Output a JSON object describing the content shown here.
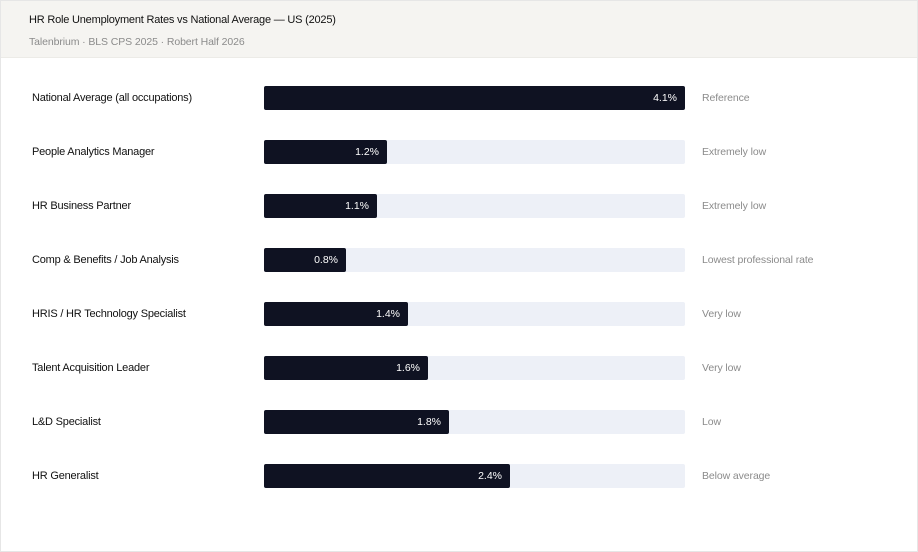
{
  "header": {
    "title": "HR Role Unemployment Rates vs National Average — US (2025)",
    "subtitle": "Talenbrium · BLS CPS 2025 · Robert Half 2026"
  },
  "chart_data": {
    "type": "bar",
    "orientation": "horizontal",
    "title": "HR Role Unemployment Rates vs National Average — US (2025)",
    "xlim": [
      0,
      4.1
    ],
    "grid": false,
    "legend": "none",
    "unit": "%",
    "colors": {
      "bar": "#0f1222",
      "track": "#edf0f7",
      "note": "#8b8b8b"
    },
    "categories": [
      "National Average (all occupations)",
      "People Analytics Manager",
      "HR Business Partner",
      "Comp & Benefits / Job Analysis",
      "HRIS / HR Technology Specialist",
      "Talent Acquisition Leader",
      "L&D Specialist",
      "HR Generalist"
    ],
    "values": [
      4.1,
      1.2,
      1.1,
      0.8,
      1.4,
      1.6,
      1.8,
      2.4
    ],
    "value_labels": [
      "4.1%",
      "1.2%",
      "1.1%",
      "0.8%",
      "1.4%",
      "1.6%",
      "1.8%",
      "2.4%"
    ],
    "notes": [
      "Reference",
      "Extremely low",
      "Extremely low",
      "Lowest professional rate",
      "Very low",
      "Very low",
      "Low",
      "Below average"
    ]
  }
}
